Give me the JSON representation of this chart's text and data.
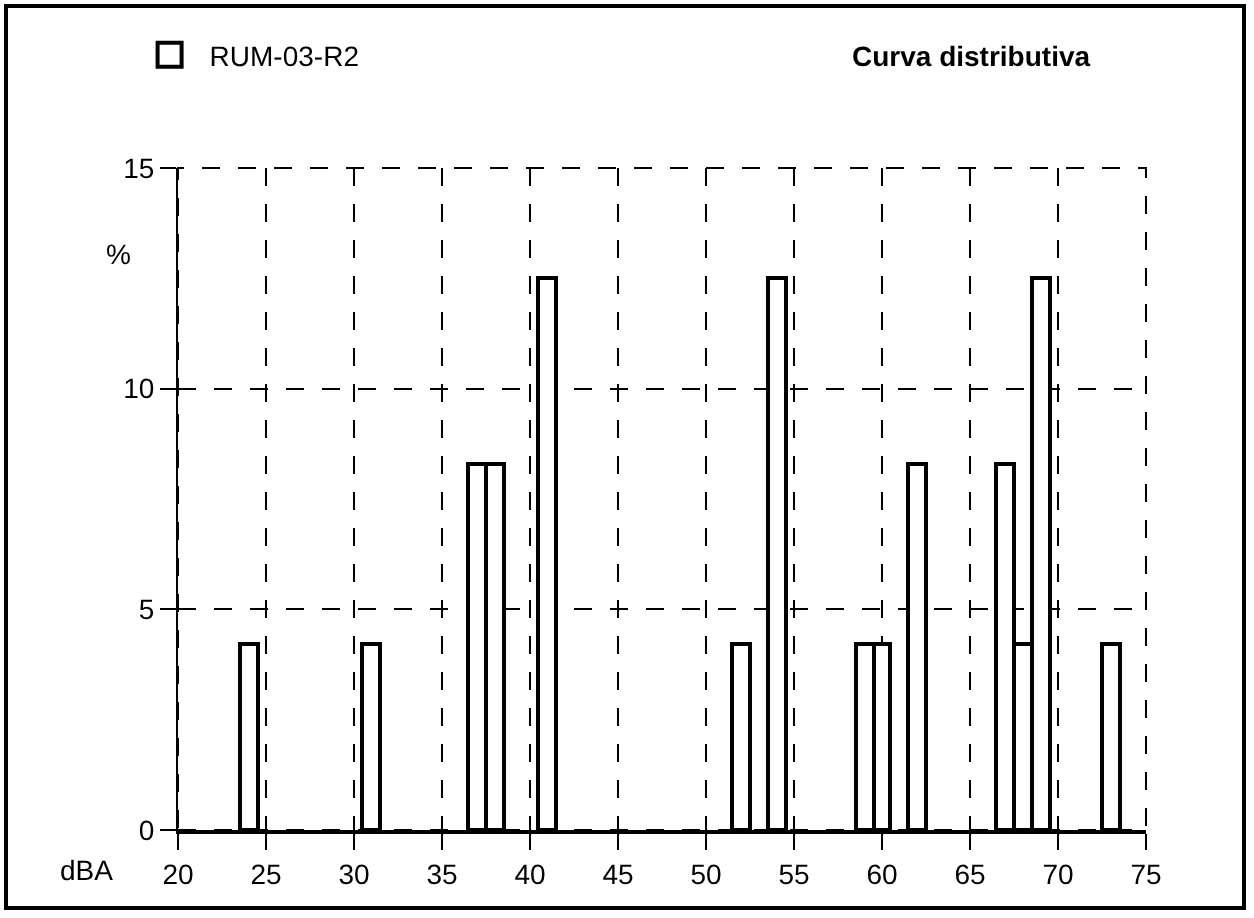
{
  "chart_data": {
    "type": "bar",
    "title": "Curva distributiva",
    "xlabel": "dBA",
    "ylabel": "%",
    "x": [
      24,
      31,
      37,
      38,
      41,
      52,
      54,
      59,
      60,
      62,
      67,
      68,
      69,
      73
    ],
    "series": [
      {
        "name": "RUM-03-R2",
        "color": "#ffffff",
        "values": [
          4.2,
          4.2,
          8.3,
          8.3,
          12.5,
          4.2,
          12.5,
          4.2,
          4.2,
          8.3,
          8.3,
          4.2,
          12.5,
          4.2
        ]
      }
    ],
    "xlim": [
      20,
      75
    ],
    "xticks": [
      20,
      25,
      30,
      35,
      40,
      45,
      50,
      55,
      60,
      65,
      70,
      75
    ],
    "ylim": [
      0,
      15
    ],
    "yticks": [
      0,
      5,
      10,
      15
    ],
    "grid": true,
    "legend": "top left"
  }
}
